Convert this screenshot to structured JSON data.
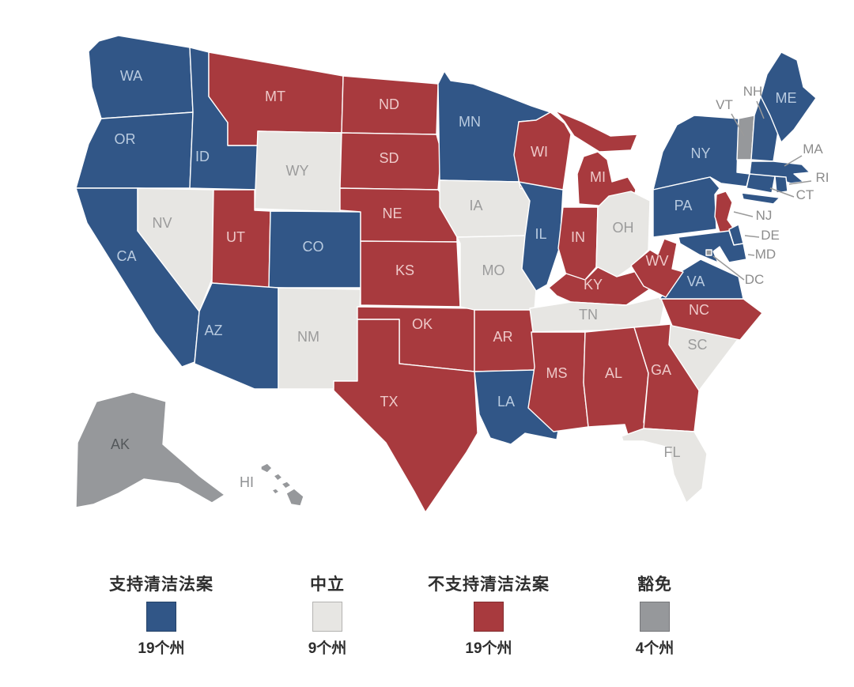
{
  "legend": {
    "items": [
      {
        "label": "支持清洁法案",
        "count": "19个州",
        "color": "#315687",
        "category": "support"
      },
      {
        "label": "中立",
        "count": "9个州",
        "color": "#e7e6e3",
        "category": "neutral"
      },
      {
        "label": "不支持清洁法案",
        "count": "19个州",
        "color": "#a83a3e",
        "category": "oppose"
      },
      {
        "label": "豁免",
        "count": "4个州",
        "color": "#96989b",
        "category": "exempt"
      }
    ]
  },
  "map": {
    "categories": {
      "support": {
        "label": "支持清洁法案",
        "color": "#315687",
        "text_color": "#b9cbe0"
      },
      "neutral": {
        "label": "中立",
        "color": "#e7e6e3",
        "text_color": "#9b9b9b"
      },
      "oppose": {
        "label": "不支持清洁法案",
        "color": "#a83a3e",
        "text_color": "#eec9c9"
      },
      "exempt": {
        "label": "豁免",
        "color": "#96989b",
        "text_color": "#54585b"
      }
    },
    "external_label_color": "#8c8c8c",
    "border_color": "#ffffff",
    "states": [
      {
        "code": "WA",
        "category": "support"
      },
      {
        "code": "OR",
        "category": "support"
      },
      {
        "code": "CA",
        "category": "support"
      },
      {
        "code": "NV",
        "category": "neutral"
      },
      {
        "code": "ID",
        "category": "support"
      },
      {
        "code": "MT",
        "category": "oppose"
      },
      {
        "code": "WY",
        "category": "neutral"
      },
      {
        "code": "UT",
        "category": "oppose"
      },
      {
        "code": "CO",
        "category": "support"
      },
      {
        "code": "AZ",
        "category": "support"
      },
      {
        "code": "NM",
        "category": "neutral"
      },
      {
        "code": "ND",
        "category": "oppose"
      },
      {
        "code": "SD",
        "category": "oppose"
      },
      {
        "code": "NE",
        "category": "oppose"
      },
      {
        "code": "KS",
        "category": "oppose"
      },
      {
        "code": "OK",
        "category": "oppose"
      },
      {
        "code": "TX",
        "category": "oppose"
      },
      {
        "code": "MN",
        "category": "support"
      },
      {
        "code": "IA",
        "category": "neutral"
      },
      {
        "code": "MO",
        "category": "neutral"
      },
      {
        "code": "AR",
        "category": "oppose"
      },
      {
        "code": "LA",
        "category": "support"
      },
      {
        "code": "WI",
        "category": "oppose"
      },
      {
        "code": "IL",
        "category": "support"
      },
      {
        "code": "MI",
        "category": "oppose"
      },
      {
        "code": "IN",
        "category": "oppose"
      },
      {
        "code": "OH",
        "category": "neutral"
      },
      {
        "code": "KY",
        "category": "oppose"
      },
      {
        "code": "TN",
        "category": "neutral"
      },
      {
        "code": "MS",
        "category": "oppose"
      },
      {
        "code": "AL",
        "category": "oppose"
      },
      {
        "code": "GA",
        "category": "oppose"
      },
      {
        "code": "FL",
        "category": "neutral"
      },
      {
        "code": "SC",
        "category": "neutral"
      },
      {
        "code": "NC",
        "category": "oppose"
      },
      {
        "code": "VA",
        "category": "support"
      },
      {
        "code": "WV",
        "category": "oppose"
      },
      {
        "code": "NY",
        "category": "support"
      },
      {
        "code": "PA",
        "category": "support"
      },
      {
        "code": "NJ",
        "category": "oppose"
      },
      {
        "code": "DE",
        "category": "support"
      },
      {
        "code": "MD",
        "category": "support"
      },
      {
        "code": "DC",
        "category": "exempt"
      },
      {
        "code": "VT",
        "category": "exempt"
      },
      {
        "code": "NH",
        "category": "support"
      },
      {
        "code": "MA",
        "category": "support"
      },
      {
        "code": "CT",
        "category": "support"
      },
      {
        "code": "RI",
        "category": "support"
      },
      {
        "code": "ME",
        "category": "support"
      },
      {
        "code": "AK",
        "category": "exempt"
      },
      {
        "code": "HI",
        "category": "exempt"
      }
    ]
  }
}
